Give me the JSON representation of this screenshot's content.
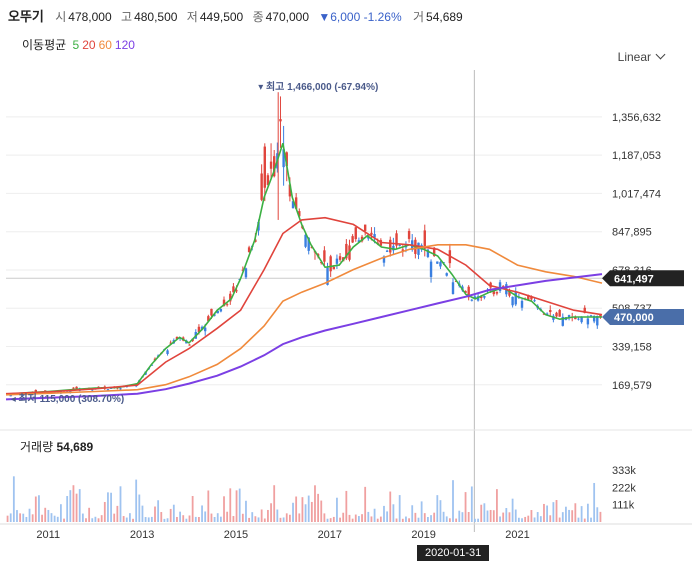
{
  "header": {
    "name": "오뚜기",
    "open_label": "시",
    "open": "478,000",
    "high_label": "고",
    "high": "480,500",
    "low_label": "저",
    "low": "449,500",
    "close_label": "종",
    "close": "470,000",
    "change": "6,000 -1.26%",
    "volume_label": "거",
    "volume": "54,689"
  },
  "moving_average": {
    "label": "이동평균",
    "periods": [
      {
        "text": "5",
        "color": "#3cb043"
      },
      {
        "text": "20",
        "color": "#e0443c"
      },
      {
        "text": "60",
        "color": "#f08a3c"
      },
      {
        "text": "120",
        "color": "#7b3fe4"
      }
    ]
  },
  "scale_selector": "Linear",
  "colors": {
    "up": "#e0443c",
    "down": "#3a7fe0",
    "ma5": "#3cb043",
    "ma20": "#e0443c",
    "ma60": "#f08a3c",
    "ma120": "#7b3fe4",
    "current_price_tag": "#4a6ea9",
    "crosshair_tag": "#222222"
  },
  "chart_data": {
    "type": "candlestick",
    "y_axis_ticks": [
      "1,356,632",
      "1,187,053",
      "1,017,474",
      "847,895",
      "678,316",
      "508,737",
      "339,158",
      "169,579"
    ],
    "y_axis_tick_values": [
      1356632,
      1187053,
      1017474,
      847895,
      678316,
      508737,
      339158,
      169579
    ],
    "ylim": [
      80000,
      1520000
    ],
    "x_axis_ticks": [
      "2011",
      "2013",
      "2015",
      "2017",
      "2019",
      "2021"
    ],
    "x_axis_tick_values": [
      2011,
      2013,
      2015,
      2017,
      2019,
      2021
    ],
    "xlim": [
      2010.1,
      2022.8
    ],
    "annotations": {
      "high": {
        "text": "최고 1,466,000 (-67.94%)",
        "value": 1466000,
        "x": 2015.9
      },
      "low": {
        "text": "최저 115,000 (308.70%)",
        "value": 115000,
        "x": 2010.2
      }
    },
    "price_tags": {
      "crosshair": {
        "text": "641,497",
        "value": 641497
      },
      "current": {
        "text": "470,000",
        "value": 470000
      }
    },
    "crosshair_date": "2020-01-31",
    "crosshair_x": 2020.08,
    "series": [
      {
        "name": "5",
        "x": [
          2010.1,
          2010.6,
          2011.0,
          2011.5,
          2012.0,
          2012.5,
          2012.9,
          2013.2,
          2013.5,
          2013.8,
          2014.0,
          2014.3,
          2014.6,
          2014.9,
          2015.1,
          2015.4,
          2015.6,
          2015.8,
          2016.0,
          2016.2,
          2016.4,
          2016.6,
          2016.9,
          2017.2,
          2017.5,
          2017.8,
          2018.1,
          2018.4,
          2018.7,
          2019.0,
          2019.3,
          2019.6,
          2019.9,
          2020.1,
          2020.4,
          2020.7,
          2021.0,
          2021.3,
          2021.6,
          2021.9,
          2022.2,
          2022.5,
          2022.8
        ],
        "values": [
          128000,
          135000,
          140000,
          148000,
          155000,
          158000,
          175000,
          260000,
          330000,
          380000,
          355000,
          420000,
          500000,
          550000,
          640000,
          810000,
          1000000,
          1110000,
          1240000,
          1000000,
          880000,
          790000,
          690000,
          700000,
          780000,
          830000,
          780000,
          770000,
          790000,
          770000,
          740000,
          660000,
          570000,
          550000,
          580000,
          600000,
          560000,
          540000,
          480000,
          460000,
          470000,
          470000,
          470000
        ]
      },
      {
        "name": "20",
        "x": [
          2010.1,
          2011.0,
          2012.0,
          2012.9,
          2013.5,
          2014.0,
          2014.6,
          2015.1,
          2015.6,
          2016.0,
          2016.4,
          2016.9,
          2017.5,
          2018.1,
          2018.7,
          2019.3,
          2019.9,
          2020.4,
          2021.0,
          2021.6,
          2022.2,
          2022.8
        ],
        "values": [
          130000,
          138000,
          152000,
          168000,
          270000,
          330000,
          420000,
          500000,
          680000,
          840000,
          900000,
          910000,
          880000,
          800000,
          790000,
          770000,
          700000,
          610000,
          580000,
          540000,
          500000,
          480000
        ]
      },
      {
        "name": "60",
        "x": [
          2010.1,
          2011.0,
          2012.0,
          2012.9,
          2013.5,
          2014.0,
          2014.6,
          2015.1,
          2015.6,
          2016.0,
          2016.4,
          2016.9,
          2017.5,
          2018.1,
          2018.7,
          2019.3,
          2019.9,
          2020.4,
          2021.0,
          2021.6,
          2022.2,
          2022.8
        ],
        "values": [
          125000,
          132000,
          140000,
          148000,
          170000,
          205000,
          260000,
          330000,
          430000,
          540000,
          580000,
          620000,
          680000,
          730000,
          770000,
          790000,
          790000,
          770000,
          700000,
          670000,
          650000,
          620000
        ]
      },
      {
        "name": "120",
        "x": [
          2010.1,
          2011.0,
          2012.0,
          2012.9,
          2013.5,
          2014.0,
          2014.6,
          2015.1,
          2015.6,
          2016.0,
          2016.4,
          2016.9,
          2017.5,
          2018.1,
          2018.7,
          2019.3,
          2019.9,
          2020.4,
          2021.0,
          2021.6,
          2022.2,
          2022.8
        ],
        "values": [
          105000,
          112000,
          120000,
          130000,
          150000,
          175000,
          210000,
          250000,
          300000,
          350000,
          380000,
          410000,
          440000,
          470000,
          500000,
          530000,
          560000,
          590000,
          610000,
          630000,
          645000,
          660000
        ]
      }
    ],
    "volume": {
      "label": "거래량",
      "value": "54,689",
      "axis_ticks": [
        "333k",
        "222k",
        "111k"
      ],
      "axis_tick_values": [
        333000,
        222000,
        111000
      ],
      "ylim": [
        0,
        430000
      ]
    }
  }
}
